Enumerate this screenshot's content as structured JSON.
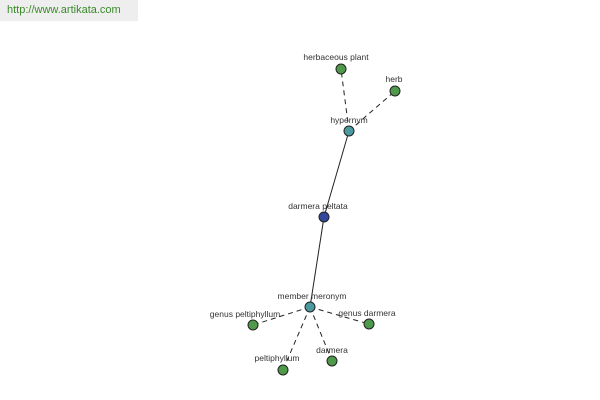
{
  "header": {
    "url": "http://www.artikata.com"
  },
  "nodes": [
    {
      "label": "darmera peltata"
    },
    {
      "label": "hypernym"
    },
    {
      "label": "member meronym"
    },
    {
      "label": "herbaceous plant"
    },
    {
      "label": "herb"
    },
    {
      "label": "genus peltiphyllum"
    },
    {
      "label": "genus darmera"
    },
    {
      "label": "peltiphyllum"
    },
    {
      "label": "darmera"
    }
  ]
}
